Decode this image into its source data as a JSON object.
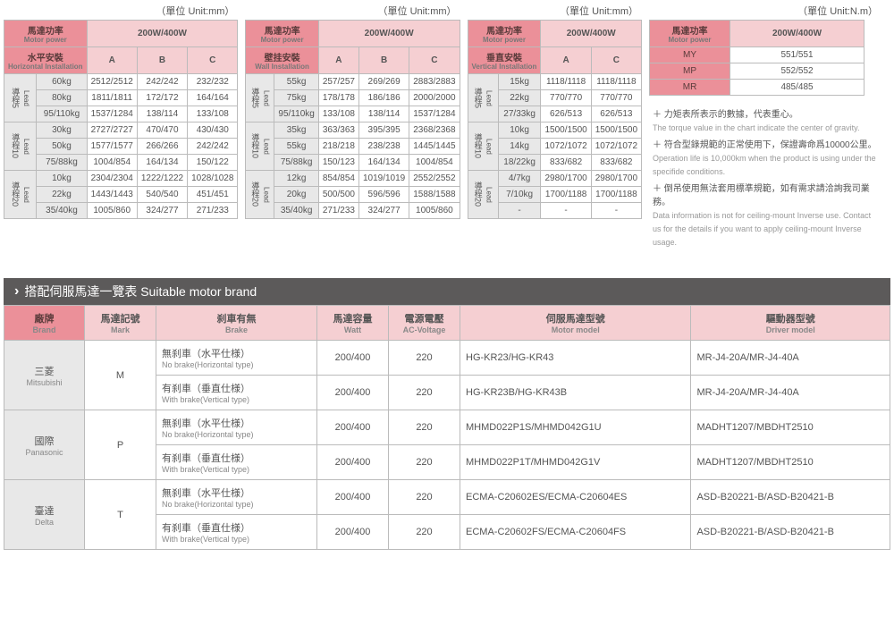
{
  "units": {
    "mm": "（單位 Unit:mm）",
    "nm": "（單位 Unit:N.m）"
  },
  "hdr": {
    "motor_power_zh": "馬達功率",
    "motor_power_en": "Motor power",
    "power_val": "200W/400W",
    "horiz_zh": "水平安裝",
    "horiz_en": "Horizontal Installation",
    "wall_zh": "壁挂安裝",
    "wall_en": "Wall Installation",
    "vert_zh": "垂直安裝",
    "vert_en": "Vertical Installation",
    "A": "A",
    "B": "B",
    "C": "C",
    "lead5": "導程5",
    "lead10": "導程10",
    "lead20": "導程20",
    "lead_en": "Lead"
  },
  "t1": {
    "rows": [
      [
        "60kg",
        "2512/2512",
        "242/242",
        "232/232"
      ],
      [
        "80kg",
        "1811/1811",
        "172/172",
        "164/164"
      ],
      [
        "95/110kg",
        "1537/1284",
        "138/114",
        "133/108"
      ],
      [
        "30kg",
        "2727/2727",
        "470/470",
        "430/430"
      ],
      [
        "50kg",
        "1577/1577",
        "266/266",
        "242/242"
      ],
      [
        "75/88kg",
        "1004/854",
        "164/134",
        "150/122"
      ],
      [
        "10kg",
        "2304/2304",
        "1222/1222",
        "1028/1028"
      ],
      [
        "22kg",
        "1443/1443",
        "540/540",
        "451/451"
      ],
      [
        "35/40kg",
        "1005/860",
        "324/277",
        "271/233"
      ]
    ]
  },
  "t2": {
    "rows": [
      [
        "55kg",
        "257/257",
        "269/269",
        "2883/2883"
      ],
      [
        "75kg",
        "178/178",
        "186/186",
        "2000/2000"
      ],
      [
        "95/110kg",
        "133/108",
        "138/114",
        "1537/1284"
      ],
      [
        "35kg",
        "363/363",
        "395/395",
        "2368/2368"
      ],
      [
        "55kg",
        "218/218",
        "238/238",
        "1445/1445"
      ],
      [
        "75/88kg",
        "150/123",
        "164/134",
        "1004/854"
      ],
      [
        "12kg",
        "854/854",
        "1019/1019",
        "2552/2552"
      ],
      [
        "20kg",
        "500/500",
        "596/596",
        "1588/1588"
      ],
      [
        "35/40kg",
        "271/233",
        "324/277",
        "1005/860"
      ]
    ]
  },
  "t3": {
    "rows": [
      [
        "15kg",
        "1118/1118",
        "1118/1118"
      ],
      [
        "22kg",
        "770/770",
        "770/770"
      ],
      [
        "27/33kg",
        "626/513",
        "626/513"
      ],
      [
        "10kg",
        "1500/1500",
        "1500/1500"
      ],
      [
        "14kg",
        "1072/1072",
        "1072/1072"
      ],
      [
        "18/22kg",
        "833/682",
        "833/682"
      ],
      [
        "4/7kg",
        "2980/1700",
        "2980/1700"
      ],
      [
        "7/10kg",
        "1700/1188",
        "1700/1188"
      ],
      [
        "-",
        "-",
        "-"
      ]
    ]
  },
  "t4": {
    "rows": [
      [
        "MY",
        "551/551"
      ],
      [
        "MP",
        "552/552"
      ],
      [
        "MR",
        "485/485"
      ]
    ]
  },
  "notes": {
    "n1_zh": "＋ 力矩表所表示的數據，代表重心。",
    "n1_en": "The torque value in the chart indicate the center of gravity.",
    "n2_zh": "＋ 符合型錄規範的正常使用下，保證壽命爲10000公里。",
    "n2_en": "Operation life is 10,000km when the product is using under the specifide conditions.",
    "n3_zh": "＋ 倒吊使用無法套用標準規範，如有需求請洽詢我司業務。",
    "n3_en": "Data information is not for ceiling-mount Inverse use. Contact us for the details if you want to apply ceiling-mount Inverse usage."
  },
  "section_title": "搭配伺服馬達一覽表 Suitable motor brand",
  "mt": {
    "h_brand_zh": "廠牌",
    "h_brand_en": "Brand",
    "h_mark_zh": "馬達記號",
    "h_mark_en": "Mark",
    "h_brake_zh": "刹車有無",
    "h_brake_en": "Brake",
    "h_watt_zh": "馬達容量",
    "h_watt_en": "Watt",
    "h_ac_zh": "電源電壓",
    "h_ac_en": "AC-Voltage",
    "h_motor_zh": "伺服馬達型號",
    "h_motor_en": "Motor model",
    "h_driver_zh": "驅動器型號",
    "h_driver_en": "Driver model",
    "nobrake_zh": "無刹車（水平仕様）",
    "nobrake_en": "No brake(Horizontal type)",
    "wbrake_zh": "有刹車（垂直仕様）",
    "wbrake_en": "With brake(Vertical type)",
    "brands": [
      {
        "zh": "三菱",
        "en": "Mitsubishi",
        "mark": "M",
        "rows": [
          {
            "watt": "200/400",
            "ac": "220",
            "motor": "HG-KR23/HG-KR43",
            "driver": "MR-J4-20A/MR-J4-40A"
          },
          {
            "watt": "200/400",
            "ac": "220",
            "motor": "HG-KR23B/HG-KR43B",
            "driver": "MR-J4-20A/MR-J4-40A"
          }
        ]
      },
      {
        "zh": "國際",
        "en": "Panasonic",
        "mark": "P",
        "rows": [
          {
            "watt": "200/400",
            "ac": "220",
            "motor": "MHMD022P1S/MHMD042G1U",
            "driver": "MADHT1207/MBDHT2510"
          },
          {
            "watt": "200/400",
            "ac": "220",
            "motor": "MHMD022P1T/MHMD042G1V",
            "driver": "MADHT1207/MBDHT2510"
          }
        ]
      },
      {
        "zh": "臺達",
        "en": "Delta",
        "mark": "T",
        "rows": [
          {
            "watt": "200/400",
            "ac": "220",
            "motor": "ECMA-C20602ES/ECMA-C20604ES",
            "driver": "ASD-B20221-B/ASD-B20421-B"
          },
          {
            "watt": "200/400",
            "ac": "220",
            "motor": "ECMA-C20602FS/ECMA-C20604FS",
            "driver": "ASD-B20221-B/ASD-B20421-B"
          }
        ]
      }
    ]
  }
}
